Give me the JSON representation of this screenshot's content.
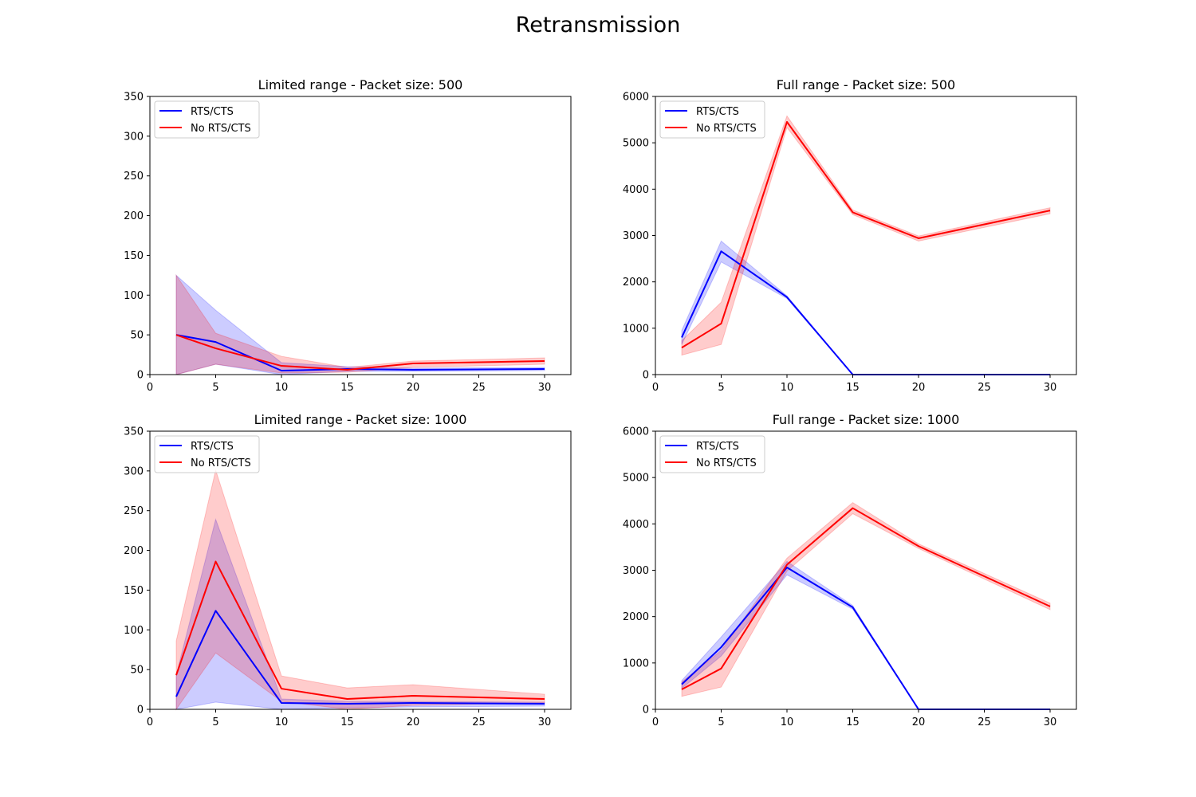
{
  "figure": {
    "suptitle": "Retransmission"
  },
  "chart_data": [
    {
      "type": "line",
      "title": "Limited range - Packet size: 500",
      "xlabel": "",
      "ylabel": "",
      "xlim": [
        0,
        32
      ],
      "ylim": [
        0,
        350
      ],
      "xticks": [
        0,
        5,
        10,
        15,
        20,
        25,
        30
      ],
      "yticks": [
        0,
        50,
        100,
        150,
        200,
        250,
        300,
        350
      ],
      "legend_position": "upper-left",
      "x": [
        2,
        5,
        10,
        15,
        20,
        30
      ],
      "series": [
        {
          "name": "RTS/CTS",
          "color": "#0000ff",
          "fill": "#0000ff",
          "values": [
            50,
            41,
            5,
            7,
            6,
            7
          ],
          "lower": [
            0,
            13,
            0,
            4,
            4,
            5
          ],
          "upper": [
            125,
            81,
            15,
            10,
            8,
            9
          ]
        },
        {
          "name": "No RTS/CTS",
          "color": "#ff0000",
          "fill": "#ff0000",
          "values": [
            50,
            33,
            11,
            6,
            14,
            17
          ],
          "lower": [
            0,
            13,
            2,
            3,
            9,
            13
          ],
          "upper": [
            125,
            52,
            23,
            9,
            17,
            21
          ]
        }
      ]
    },
    {
      "type": "line",
      "title": "Full range - Packet size: 500",
      "xlabel": "",
      "ylabel": "",
      "xlim": [
        0,
        32
      ],
      "ylim": [
        0,
        6000
      ],
      "xticks": [
        0,
        5,
        10,
        15,
        20,
        25,
        30
      ],
      "yticks": [
        0,
        1000,
        2000,
        3000,
        4000,
        5000,
        6000
      ],
      "legend_position": "upper-left",
      "x": [
        2,
        5,
        10,
        15,
        20,
        30
      ],
      "series": [
        {
          "name": "RTS/CTS",
          "color": "#0000ff",
          "fill": "#0000ff",
          "values": [
            800,
            2660,
            1670,
            0,
            0,
            0
          ],
          "lower": [
            650,
            2430,
            1640,
            0,
            0,
            0
          ],
          "upper": [
            950,
            2880,
            1700,
            0,
            0,
            0
          ]
        },
        {
          "name": "No RTS/CTS",
          "color": "#ff0000",
          "fill": "#ff0000",
          "values": [
            580,
            1100,
            5450,
            3500,
            2940,
            3540
          ],
          "lower": [
            420,
            650,
            5330,
            3450,
            2880,
            3470
          ],
          "upper": [
            730,
            1560,
            5580,
            3550,
            2990,
            3600
          ]
        }
      ]
    },
    {
      "type": "line",
      "title": "Limited range - Packet size: 1000",
      "xlabel": "",
      "ylabel": "",
      "xlim": [
        0,
        32
      ],
      "ylim": [
        0,
        350
      ],
      "xticks": [
        0,
        5,
        10,
        15,
        20,
        25,
        30
      ],
      "yticks": [
        0,
        50,
        100,
        150,
        200,
        250,
        300,
        350
      ],
      "legend_position": "upper-left",
      "x": [
        2,
        5,
        10,
        15,
        20,
        30
      ],
      "series": [
        {
          "name": "RTS/CTS",
          "color": "#0000ff",
          "fill": "#0000ff",
          "values": [
            16,
            124,
            8,
            7,
            8,
            7
          ],
          "lower": [
            0,
            9,
            0,
            2,
            3,
            4
          ],
          "upper": [
            43,
            239,
            13,
            10,
            10,
            9
          ]
        },
        {
          "name": "No RTS/CTS",
          "color": "#ff0000",
          "fill": "#ff0000",
          "values": [
            43,
            186,
            26,
            13,
            17,
            13
          ],
          "lower": [
            0,
            71,
            10,
            0,
            5,
            8
          ],
          "upper": [
            86,
            301,
            42,
            27,
            31,
            19
          ]
        }
      ]
    },
    {
      "type": "line",
      "title": "Full range - Packet size: 1000",
      "xlabel": "",
      "ylabel": "",
      "xlim": [
        0,
        32
      ],
      "ylim": [
        0,
        6000
      ],
      "xticks": [
        0,
        5,
        10,
        15,
        20,
        25,
        30
      ],
      "yticks": [
        0,
        1000,
        2000,
        3000,
        4000,
        5000,
        6000
      ],
      "legend_position": "upper-left",
      "x": [
        2,
        5,
        10,
        15,
        20,
        30
      ],
      "series": [
        {
          "name": "RTS/CTS",
          "color": "#0000ff",
          "fill": "#0000ff",
          "values": [
            540,
            1340,
            3060,
            2200,
            0,
            0
          ],
          "lower": [
            450,
            1150,
            2900,
            2160,
            0,
            0
          ],
          "upper": [
            620,
            1560,
            3190,
            2240,
            0,
            0
          ]
        },
        {
          "name": "No RTS/CTS",
          "color": "#ff0000",
          "fill": "#ff0000",
          "values": [
            430,
            880,
            3120,
            4340,
            3520,
            2220
          ],
          "lower": [
            280,
            480,
            2980,
            4220,
            3470,
            2150
          ],
          "upper": [
            590,
            1270,
            3260,
            4460,
            3570,
            2290
          ]
        }
      ]
    }
  ]
}
